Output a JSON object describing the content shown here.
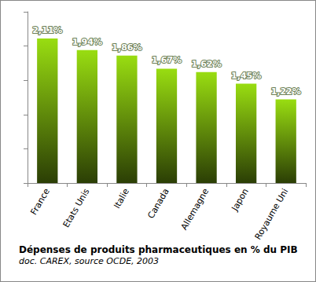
{
  "chart_data": {
    "type": "bar",
    "title": "Dépenses de produits pharmaceutiques en % du PIB",
    "subtitle": "doc. CAREX, source OCDE, 2003",
    "categories": [
      "France",
      "Etats Unis",
      "Italie",
      "Canada",
      "Allemagne",
      "Japon",
      "Royaume Uni"
    ],
    "values": [
      2.11,
      1.94,
      1.86,
      1.67,
      1.62,
      1.45,
      1.22
    ],
    "value_labels": [
      "2,11%",
      "1,94%",
      "1,86%",
      "1,67%",
      "1,62%",
      "1,45%",
      "1,22%"
    ],
    "color": "#99dd11",
    "ylim": [
      0,
      2.5
    ],
    "yticks": [
      0,
      0.5,
      1,
      1.5,
      2,
      2.5
    ],
    "grid": false,
    "data_labels": true,
    "tick_labels": "x"
  }
}
